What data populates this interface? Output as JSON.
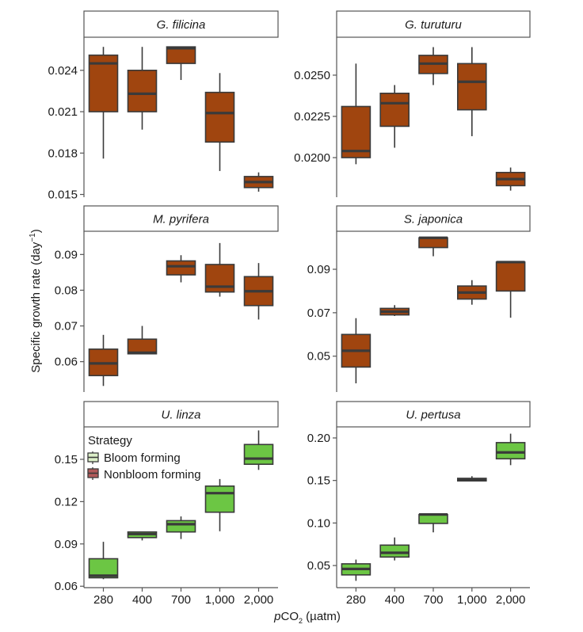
{
  "chart_data": {
    "type": "boxplot",
    "layout": "facet-grid 3 rows x 2 columns",
    "xlabel_prefix": "p",
    "xlabel_main": "CO",
    "xlabel_sub": "2",
    "xlabel_unit": " (µatm)",
    "ylabel": "Specific growth rate (day",
    "ylabel_sup": "−1",
    "ylabel_close": ")",
    "categories": [
      "280",
      "400",
      "700",
      "1,000",
      "2,000"
    ],
    "colors": {
      "Bloom forming": "#6cc644",
      "Nonbloom forming": "#a0450f",
      "legend_bloom_swatch": "#dcefc8",
      "legend_nonbloom_swatch": "#b15a5a",
      "line": "#3a3a3a"
    },
    "legend": {
      "title": "Strategy",
      "entries": [
        "Bloom forming",
        "Nonbloom forming"
      ],
      "placement": "top-left of U. linza panel"
    },
    "panels": [
      {
        "title": "G. filicina",
        "strategy": "Nonbloom forming",
        "ylim": [
          0.0148,
          0.0264
        ],
        "yticks": [
          0.015,
          0.018,
          0.021,
          0.024
        ],
        "ytick_labels": [
          "0.015",
          "0.018",
          "0.021",
          "0.024"
        ],
        "boxes": [
          {
            "x": "280",
            "whislo": 0.0176,
            "q1": 0.021,
            "med": 0.0245,
            "q3": 0.0251,
            "whishi": 0.0257
          },
          {
            "x": "400",
            "whislo": 0.0197,
            "q1": 0.021,
            "med": 0.0223,
            "q3": 0.024,
            "whishi": 0.0257
          },
          {
            "x": "700",
            "whislo": 0.0233,
            "q1": 0.0245,
            "med": 0.0256,
            "q3": 0.0257,
            "whishi": 0.0257
          },
          {
            "x": "1,000",
            "whislo": 0.0167,
            "q1": 0.0188,
            "med": 0.0209,
            "q3": 0.0224,
            "whishi": 0.0238
          },
          {
            "x": "2,000",
            "whislo": 0.0152,
            "q1": 0.0155,
            "med": 0.0159,
            "q3": 0.0163,
            "whishi": 0.0166
          }
        ]
      },
      {
        "title": "G. turuturu",
        "strategy": "Nonbloom forming",
        "ylim": [
          0.0176,
          0.0273
        ],
        "yticks": [
          0.02,
          0.0225,
          0.025
        ],
        "ytick_labels": [
          "0.0200",
          "0.0225",
          "0.0250"
        ],
        "boxes": [
          {
            "x": "280",
            "whislo": 0.0196,
            "q1": 0.02,
            "med": 0.0204,
            "q3": 0.0231,
            "whishi": 0.0257
          },
          {
            "x": "400",
            "whislo": 0.0206,
            "q1": 0.0219,
            "med": 0.0233,
            "q3": 0.0239,
            "whishi": 0.0244
          },
          {
            "x": "700",
            "whislo": 0.0244,
            "q1": 0.0251,
            "med": 0.0257,
            "q3": 0.0262,
            "whishi": 0.0267
          },
          {
            "x": "1,000",
            "whislo": 0.0213,
            "q1": 0.0229,
            "med": 0.0246,
            "q3": 0.0257,
            "whishi": 0.0267
          },
          {
            "x": "2,000",
            "whislo": 0.018,
            "q1": 0.0183,
            "med": 0.0187,
            "q3": 0.0191,
            "whishi": 0.0194
          }
        ]
      },
      {
        "title": "M. pyrifera",
        "strategy": "Nonbloom forming",
        "ylim": [
          0.0515,
          0.0965
        ],
        "yticks": [
          0.06,
          0.07,
          0.08,
          0.09
        ],
        "ytick_labels": [
          "0.06",
          "0.07",
          "0.08",
          "0.09"
        ],
        "boxes": [
          {
            "x": "280",
            "whislo": 0.0532,
            "q1": 0.0561,
            "med": 0.0595,
            "q3": 0.0635,
            "whishi": 0.0675
          },
          {
            "x": "400",
            "whislo": 0.0622,
            "q1": 0.0622,
            "med": 0.0625,
            "q3": 0.0663,
            "whishi": 0.07
          },
          {
            "x": "700",
            "whislo": 0.0822,
            "q1": 0.0843,
            "med": 0.0867,
            "q3": 0.0882,
            "whishi": 0.0898
          },
          {
            "x": "1,000",
            "whislo": 0.0782,
            "q1": 0.0795,
            "med": 0.081,
            "q3": 0.0872,
            "whishi": 0.0932
          },
          {
            "x": "2,000",
            "whislo": 0.0718,
            "q1": 0.0757,
            "med": 0.0797,
            "q3": 0.0838,
            "whishi": 0.0876
          }
        ]
      },
      {
        "title": "S. japonica",
        "strategy": "Nonbloom forming",
        "ylim": [
          0.0335,
          0.1075
        ],
        "yticks": [
          0.05,
          0.07,
          0.09
        ],
        "ytick_labels": [
          "0.05",
          "0.07",
          "0.09"
        ],
        "boxes": [
          {
            "x": "280",
            "whislo": 0.0375,
            "q1": 0.045,
            "med": 0.0525,
            "q3": 0.06,
            "whishi": 0.0675
          },
          {
            "x": "400",
            "whislo": 0.0685,
            "q1": 0.069,
            "med": 0.0705,
            "q3": 0.072,
            "whishi": 0.0735
          },
          {
            "x": "700",
            "whislo": 0.096,
            "q1": 0.1,
            "med": 0.1045,
            "q3": 0.1045,
            "whishi": 0.1045
          },
          {
            "x": "1,000",
            "whislo": 0.0737,
            "q1": 0.0763,
            "med": 0.0793,
            "q3": 0.0823,
            "whishi": 0.085
          },
          {
            "x": "2,000",
            "whislo": 0.0677,
            "q1": 0.08,
            "med": 0.0933,
            "q3": 0.0933,
            "whishi": 0.0933
          }
        ]
      },
      {
        "title": "U. linza",
        "strategy": "Bloom forming",
        "ylim": [
          0.059,
          0.173
        ],
        "yticks": [
          0.06,
          0.09,
          0.12,
          0.15
        ],
        "ytick_labels": [
          "0.06",
          "0.09",
          "0.12",
          "0.15"
        ],
        "boxes": [
          {
            "x": "280",
            "whislo": 0.065,
            "q1": 0.066,
            "med": 0.0675,
            "q3": 0.0795,
            "whishi": 0.0915
          },
          {
            "x": "400",
            "whislo": 0.0925,
            "q1": 0.0945,
            "med": 0.097,
            "q3": 0.0985,
            "whishi": 0.0985
          },
          {
            "x": "700",
            "whislo": 0.0935,
            "q1": 0.0985,
            "med": 0.104,
            "q3": 0.1065,
            "whishi": 0.1095
          },
          {
            "x": "1,000",
            "whislo": 0.099,
            "q1": 0.1125,
            "med": 0.126,
            "q3": 0.131,
            "whishi": 0.136
          },
          {
            "x": "2,000",
            "whislo": 0.1425,
            "q1": 0.1465,
            "med": 0.1505,
            "q3": 0.1605,
            "whishi": 0.1705
          }
        ]
      },
      {
        "title": "U. pertusa",
        "strategy": "Bloom forming",
        "ylim": [
          0.024,
          0.213
        ],
        "yticks": [
          0.05,
          0.1,
          0.15,
          0.2
        ],
        "ytick_labels": [
          "0.05",
          "0.10",
          "0.15",
          "0.20"
        ],
        "boxes": [
          {
            "x": "280",
            "whislo": 0.032,
            "q1": 0.039,
            "med": 0.046,
            "q3": 0.052,
            "whishi": 0.057
          },
          {
            "x": "400",
            "whislo": 0.056,
            "q1": 0.06,
            "med": 0.065,
            "q3": 0.074,
            "whishi": 0.083
          },
          {
            "x": "700",
            "whislo": 0.089,
            "q1": 0.0995,
            "med": 0.11,
            "q3": 0.11,
            "whishi": 0.11
          },
          {
            "x": "1,000",
            "whislo": 0.149,
            "q1": 0.1495,
            "med": 0.151,
            "q3": 0.1525,
            "whishi": 0.155
          },
          {
            "x": "2,000",
            "whislo": 0.168,
            "q1": 0.1755,
            "med": 0.183,
            "q3": 0.1945,
            "whishi": 0.205
          }
        ]
      }
    ]
  }
}
